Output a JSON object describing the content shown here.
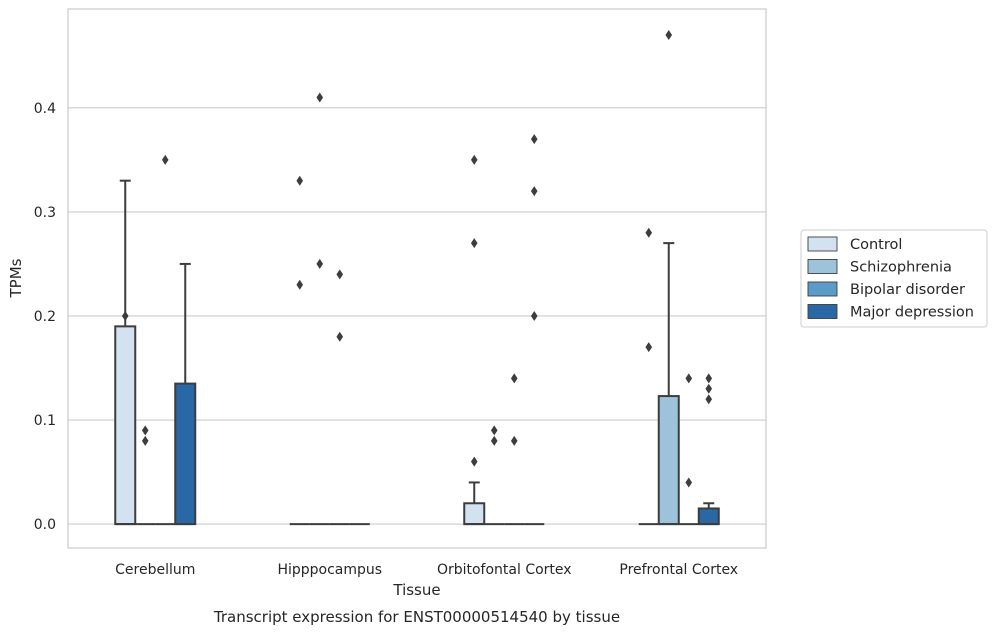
{
  "chart_data": {
    "type": "box",
    "categories": [
      "Cerebellum",
      "Hipppocampus",
      "Orbitofontal Cortex",
      "Prefrontal Cortex"
    ],
    "xlabel": "Tissue",
    "ylabel": "TPMs",
    "caption": "Transcript expression for ENST00000514540 by tissue",
    "ylim": [
      -0.023,
      0.495
    ],
    "yticks": [
      0.0,
      0.1,
      0.2,
      0.3,
      0.4
    ],
    "ytick_labels": [
      "0.0",
      "0.1",
      "0.2",
      "0.3",
      "0.4"
    ],
    "grid": "horizontal",
    "legend_position": "right",
    "series": [
      {
        "name": "Control",
        "color": "#d2e2f1",
        "boxes": [
          {
            "q1": 0.0,
            "median": 0.0,
            "q3": 0.19,
            "whisker_low": 0.0,
            "whisker_high": 0.33,
            "outliers": [
              0.2
            ]
          },
          {
            "q1": 0.0,
            "median": 0.0,
            "q3": 0.0,
            "whisker_low": 0.0,
            "whisker_high": 0.0,
            "outliers": [
              0.33,
              0.23
            ]
          },
          {
            "q1": 0.0,
            "median": 0.0,
            "q3": 0.02,
            "whisker_low": 0.0,
            "whisker_high": 0.04,
            "outliers": [
              0.35,
              0.27,
              0.06
            ]
          },
          {
            "q1": 0.0,
            "median": 0.0,
            "q3": 0.0,
            "whisker_low": 0.0,
            "whisker_high": 0.0,
            "outliers": [
              0.28,
              0.17
            ]
          }
        ]
      },
      {
        "name": "Schizophrenia",
        "color": "#9cc3da",
        "boxes": [
          {
            "q1": 0.0,
            "median": 0.0,
            "q3": 0.0,
            "whisker_low": 0.0,
            "whisker_high": 0.0,
            "outliers": [
              0.09,
              0.08
            ]
          },
          {
            "q1": 0.0,
            "median": 0.0,
            "q3": 0.0,
            "whisker_low": 0.0,
            "whisker_high": 0.0,
            "outliers": [
              0.41,
              0.25
            ]
          },
          {
            "q1": 0.0,
            "median": 0.0,
            "q3": 0.0,
            "whisker_low": 0.0,
            "whisker_high": 0.0,
            "outliers": [
              0.09,
              0.08
            ]
          },
          {
            "q1": 0.0,
            "median": 0.0,
            "q3": 0.123,
            "whisker_low": 0.0,
            "whisker_high": 0.27,
            "outliers": [
              0.47
            ]
          }
        ]
      },
      {
        "name": "Bipolar disorder",
        "color": "#5b9bc9",
        "boxes": [
          {
            "q1": 0.0,
            "median": 0.0,
            "q3": 0.0,
            "whisker_low": 0.0,
            "whisker_high": 0.0,
            "outliers": [
              0.35
            ]
          },
          {
            "q1": 0.0,
            "median": 0.0,
            "q3": 0.0,
            "whisker_low": 0.0,
            "whisker_high": 0.0,
            "outliers": [
              0.24,
              0.18
            ]
          },
          {
            "q1": 0.0,
            "median": 0.0,
            "q3": 0.0,
            "whisker_low": 0.0,
            "whisker_high": 0.0,
            "outliers": [
              0.14,
              0.08
            ]
          },
          {
            "q1": 0.0,
            "median": 0.0,
            "q3": 0.0,
            "whisker_low": 0.0,
            "whisker_high": 0.0,
            "outliers": [
              0.14,
              0.04
            ]
          }
        ]
      },
      {
        "name": "Major depression",
        "color": "#2a67a5",
        "boxes": [
          {
            "q1": 0.0,
            "median": 0.0,
            "q3": 0.135,
            "whisker_low": 0.0,
            "whisker_high": 0.25,
            "outliers": []
          },
          {
            "q1": 0.0,
            "median": 0.0,
            "q3": 0.0,
            "whisker_low": 0.0,
            "whisker_high": 0.0,
            "outliers": []
          },
          {
            "q1": 0.0,
            "median": 0.0,
            "q3": 0.0,
            "whisker_low": 0.0,
            "whisker_high": 0.0,
            "outliers": [
              0.37,
              0.32,
              0.2
            ]
          },
          {
            "q1": 0.0,
            "median": 0.0,
            "q3": 0.015,
            "whisker_low": 0.0,
            "whisker_high": 0.02,
            "outliers": [
              0.14,
              0.13,
              0.12
            ]
          }
        ]
      }
    ]
  }
}
